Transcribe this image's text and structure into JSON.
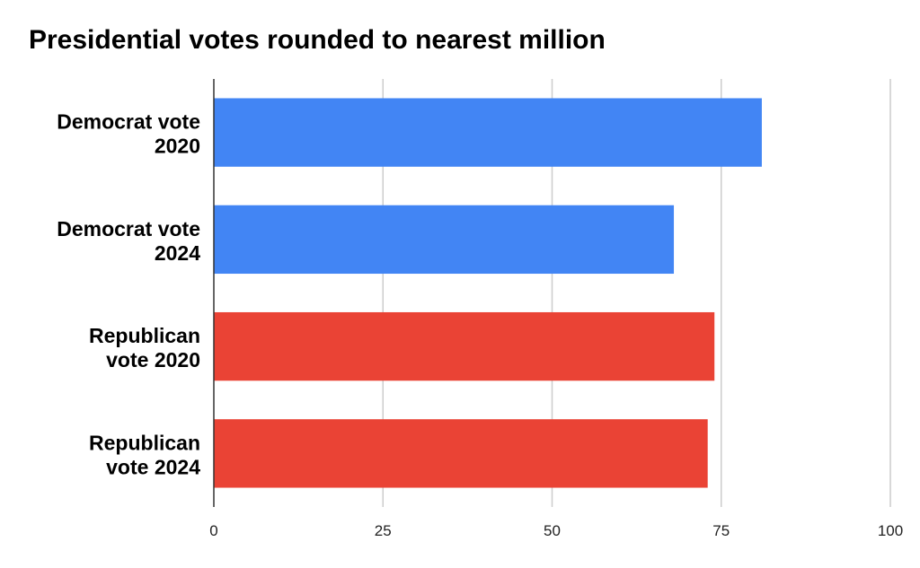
{
  "chart_data": {
    "type": "bar",
    "orientation": "horizontal",
    "title": "Presidential votes rounded to nearest million",
    "categories": [
      "Democrat vote 2020",
      "Democrat vote 2024",
      "Republican vote 2020",
      "Republican vote 2024"
    ],
    "category_lines": [
      [
        "Democrat vote",
        "2020"
      ],
      [
        "Democrat vote",
        "2024"
      ],
      [
        "Republican",
        "vote 2020"
      ],
      [
        "Republican",
        "vote 2024"
      ]
    ],
    "values": [
      81,
      68,
      74,
      73
    ],
    "colors": [
      "#4285F4",
      "#4285F4",
      "#EA4335",
      "#EA4335"
    ],
    "xlabel": "",
    "ylabel": "",
    "xlim": [
      0,
      100
    ],
    "xticks": [
      "0",
      "25",
      "50",
      "75",
      "100"
    ],
    "xtick_values": [
      0,
      25,
      50,
      75,
      100
    ],
    "grid": true,
    "legend": "none"
  }
}
